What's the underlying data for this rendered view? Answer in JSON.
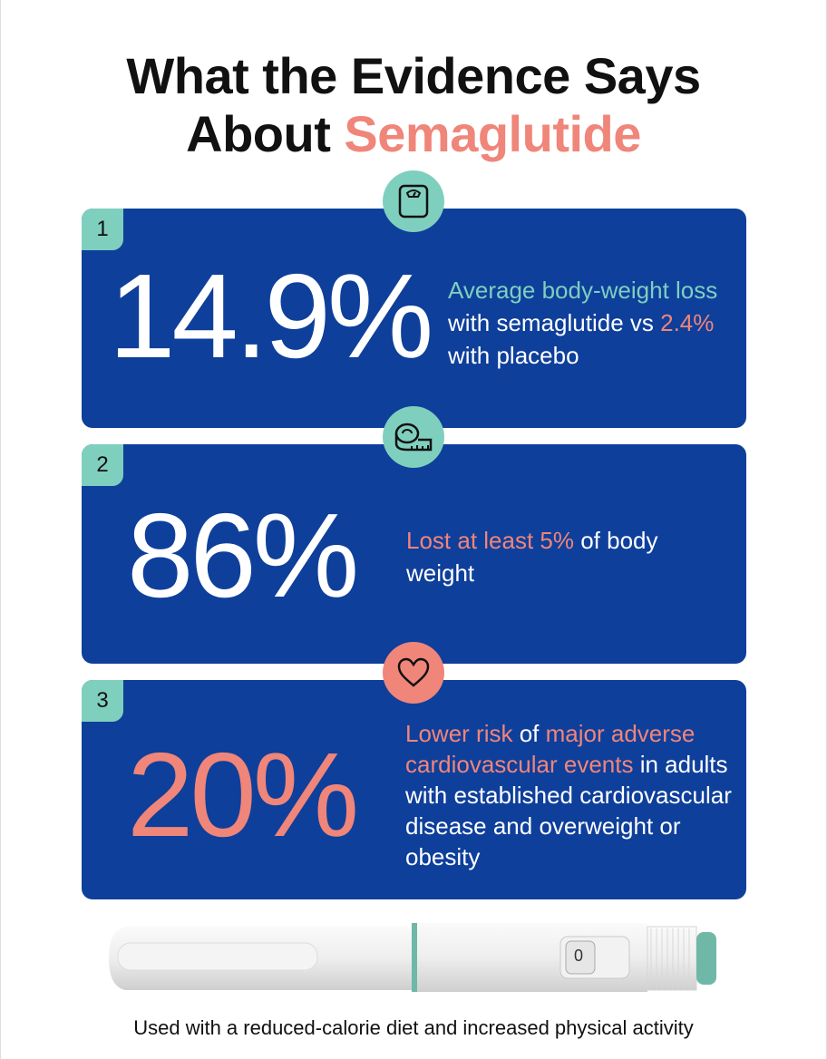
{
  "title": {
    "line1": "What the Evidence Says",
    "line2_prefix": "About ",
    "line2_accent": "Semaglutide"
  },
  "colors": {
    "card": "#0e3f9b",
    "teal": "#7fcfbf",
    "coral": "#f0857a"
  },
  "cards": [
    {
      "number": "1",
      "icon": "scale-icon",
      "value": "14.9%",
      "desc": {
        "a": "Average body-weight loss",
        "b": " with semaglutide vs ",
        "c": "2.4%",
        "d": " with placebo"
      }
    },
    {
      "number": "2",
      "icon": "tape-measure-icon",
      "value": "86%",
      "desc": {
        "a": "Lost at least 5%",
        "b": " of body weight"
      }
    },
    {
      "number": "3",
      "icon": "heart-icon",
      "value": "20%",
      "desc": {
        "a": "Lower risk",
        "b": " of ",
        "c": "major adverse cardiovascular events",
        "d": " in adults with established cardiovascular disease and overweight or obesity"
      }
    }
  ],
  "pen": {
    "dose_display": "0"
  },
  "footer": "Used with a reduced-calorie diet and increased physical activity"
}
